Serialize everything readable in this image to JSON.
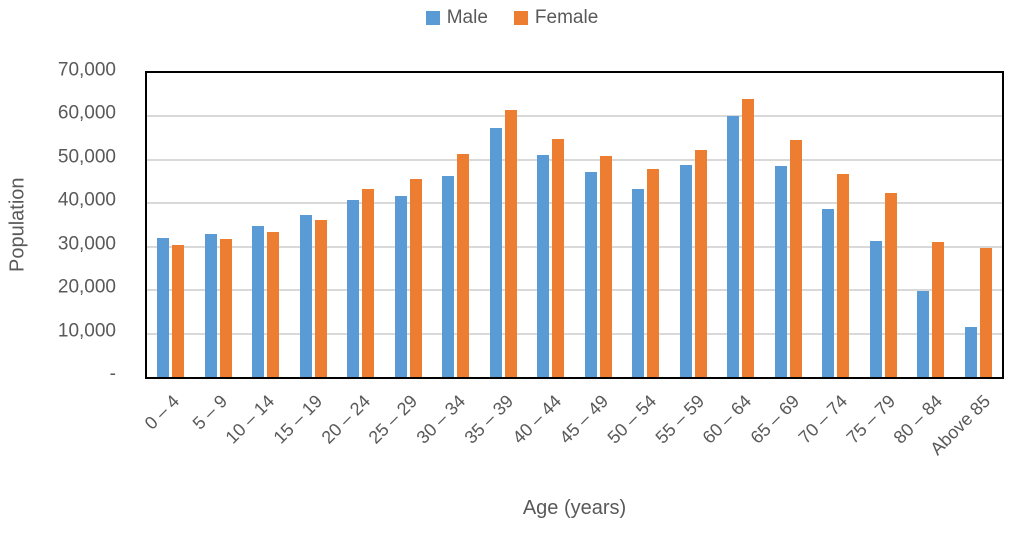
{
  "chart_data": {
    "type": "bar",
    "title": "",
    "categories": [
      "0 – 4",
      "5 – 9",
      "10 – 14",
      "15 – 19",
      "20 – 24",
      "25 – 29",
      "30 – 34",
      "35 – 39",
      "40 – 44",
      "45 – 49",
      "50 – 54",
      "55 – 59",
      "60 – 64",
      "65 – 69",
      "70 – 74",
      "75 – 79",
      "80 – 84",
      "Above 85"
    ],
    "series": [
      {
        "name": "Male",
        "color": "#5B9BD5",
        "values": [
          31900,
          33000,
          34700,
          37200,
          40800,
          41600,
          46200,
          57400,
          51100,
          47100,
          43400,
          48900,
          60000,
          48600,
          38700,
          31300,
          19900,
          11500
        ]
      },
      {
        "name": "Female",
        "color": "#ED7D31",
        "values": [
          30300,
          31700,
          33300,
          36200,
          43300,
          45500,
          51300,
          61500,
          54700,
          51000,
          48000,
          52300,
          64100,
          54600,
          46800,
          42300,
          31200,
          29700
        ]
      }
    ],
    "xlabel": "Age (years)",
    "ylabel": "Population",
    "ylim": [
      0,
      70000
    ],
    "ytick_interval": 10000,
    "ytick_labels_top_to_bottom": [
      "70,000",
      "60,000",
      "50,000",
      "40,000",
      "30,000",
      "20,000",
      "10,000",
      "-"
    ],
    "grid": true,
    "legend_position": "top",
    "colors": {
      "male": "#5B9BD5",
      "female": "#ED7D31",
      "gridline": "#D9D9D9",
      "axis_text": "#595959",
      "plot_border": "#000000"
    }
  }
}
